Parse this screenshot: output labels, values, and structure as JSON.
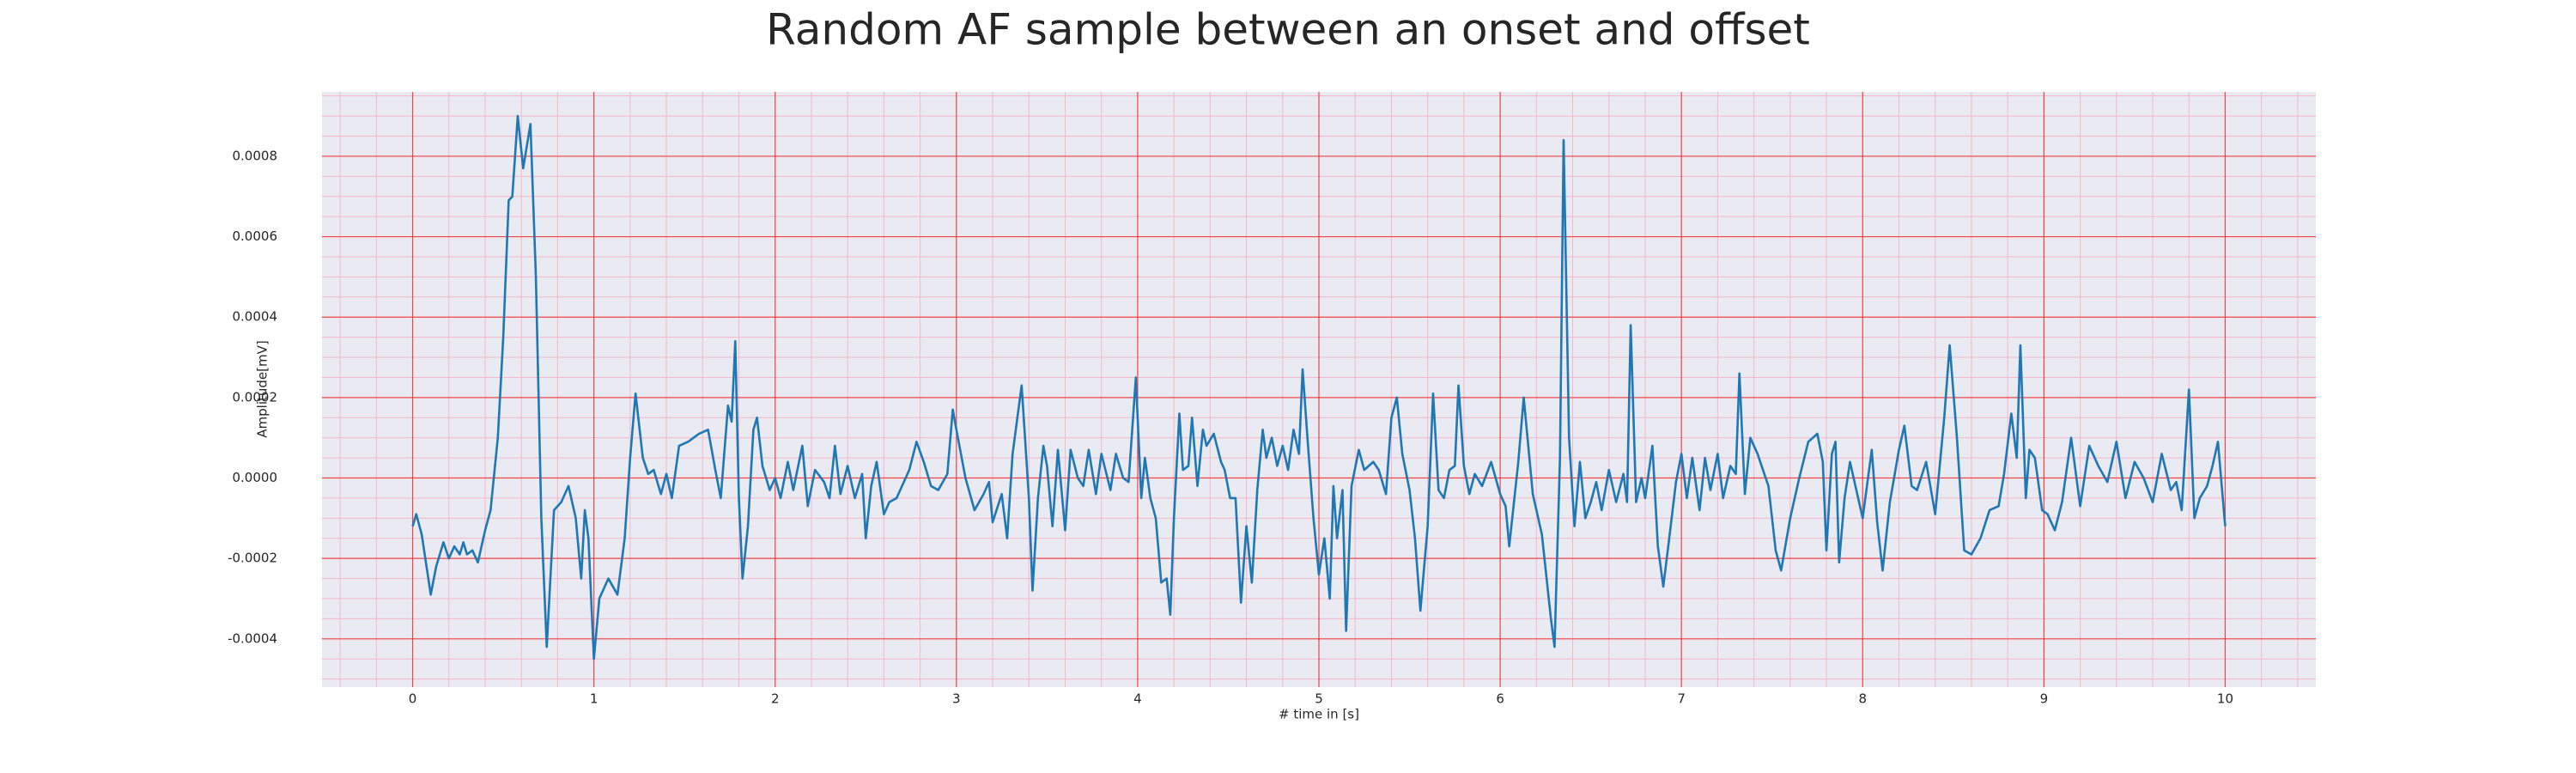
{
  "chart_data": {
    "type": "line",
    "title": "Random AF sample between an onset and offset",
    "xlabel": "# time in [s]",
    "ylabel": "Amplitude[mV]",
    "color": "#1f77b4",
    "grid": true,
    "minor_grid": true,
    "xlim": [
      -0.5,
      10.5
    ],
    "ylim": [
      -0.00052,
      0.00096
    ],
    "xticks": [
      0,
      1,
      2,
      3,
      4,
      5,
      6,
      7,
      8,
      9,
      10
    ],
    "yticks": [
      -0.0004,
      -0.0002,
      {
        "value": 0,
        "label": "0.0000"
      },
      0.0002,
      0.0004,
      0.0006,
      0.0008
    ],
    "x": [
      0,
      0.02,
      0.05,
      0.1,
      0.13,
      0.17,
      0.2,
      0.23,
      0.26,
      0.28,
      0.3,
      0.33,
      0.36,
      0.4,
      0.43,
      0.47,
      0.5,
      0.53,
      0.55,
      0.58,
      0.61,
      0.65,
      0.68,
      0.71,
      0.74,
      0.78,
      0.82,
      0.86,
      0.9,
      0.93,
      0.95,
      0.97,
      1.0,
      1.03,
      1.08,
      1.13,
      1.17,
      1.2,
      1.23,
      1.27,
      1.3,
      1.33,
      1.37,
      1.4,
      1.43,
      1.47,
      1.52,
      1.58,
      1.63,
      1.67,
      1.7,
      1.74,
      1.76,
      1.78,
      1.8,
      1.82,
      1.85,
      1.88,
      1.9,
      1.93,
      1.97,
      2.0,
      2.03,
      2.07,
      2.1,
      2.15,
      2.18,
      2.22,
      2.27,
      2.3,
      2.33,
      2.36,
      2.4,
      2.44,
      2.48,
      2.5,
      2.53,
      2.56,
      2.6,
      2.63,
      2.67,
      2.7,
      2.74,
      2.78,
      2.82,
      2.86,
      2.9,
      2.95,
      2.98,
      3.0,
      3.05,
      3.1,
      3.15,
      3.18,
      3.2,
      3.25,
      3.28,
      3.31,
      3.36,
      3.4,
      3.42,
      3.45,
      3.48,
      3.5,
      3.53,
      3.56,
      3.6,
      3.63,
      3.67,
      3.7,
      3.73,
      3.77,
      3.8,
      3.85,
      3.88,
      3.92,
      3.95,
      3.99,
      4.02,
      4.04,
      4.07,
      4.1,
      4.13,
      4.16,
      4.18,
      4.2,
      4.23,
      4.25,
      4.28,
      4.3,
      4.33,
      4.36,
      4.38,
      4.42,
      4.46,
      4.48,
      4.51,
      4.54,
      4.57,
      4.6,
      4.63,
      4.66,
      4.69,
      4.71,
      4.74,
      4.77,
      4.8,
      4.83,
      4.86,
      4.89,
      4.91,
      4.94,
      4.97,
      5.0,
      5.03,
      5.06,
      5.08,
      5.1,
      5.13,
      5.15,
      5.18,
      5.22,
      5.25,
      5.3,
      5.33,
      5.37,
      5.4,
      5.43,
      5.46,
      5.5,
      5.53,
      5.56,
      5.6,
      5.63,
      5.66,
      5.69,
      5.72,
      5.75,
      5.77,
      5.8,
      5.83,
      5.86,
      5.9,
      5.95,
      6.0,
      6.03,
      6.05,
      6.1,
      6.13,
      6.18,
      6.23,
      6.28,
      6.3,
      6.33,
      6.35,
      6.38,
      6.41,
      6.44,
      6.47,
      6.5,
      6.53,
      6.56,
      6.6,
      6.64,
      6.68,
      6.7,
      6.72,
      6.75,
      6.78,
      6.8,
      6.84,
      6.87,
      6.9,
      6.93,
      6.97,
      7.0,
      7.03,
      7.06,
      7.1,
      7.13,
      7.16,
      7.2,
      7.23,
      7.27,
      7.3,
      7.32,
      7.35,
      7.38,
      7.42,
      7.45,
      7.48,
      7.52,
      7.55,
      7.6,
      7.65,
      7.7,
      7.75,
      7.78,
      7.8,
      7.83,
      7.85,
      7.87,
      7.9,
      7.93,
      7.97,
      8.0,
      8.05,
      8.08,
      8.11,
      8.15,
      8.2,
      8.23,
      8.27,
      8.3,
      8.35,
      8.4,
      8.45,
      8.48,
      8.52,
      8.56,
      8.6,
      8.65,
      8.7,
      8.75,
      8.78,
      8.82,
      8.85,
      8.87,
      8.9,
      8.92,
      8.95,
      8.99,
      9.02,
      9.06,
      9.1,
      9.15,
      9.2,
      9.25,
      9.3,
      9.35,
      9.4,
      9.45,
      9.5,
      9.55,
      9.6,
      9.65,
      9.7,
      9.73,
      9.76,
      9.8,
      9.83,
      9.86,
      9.9,
      9.93,
      9.96,
      10.0
    ],
    "values": [
      -0.00012,
      -9e-05,
      -0.00014,
      -0.00029,
      -0.00022,
      -0.00016,
      -0.0002,
      -0.00017,
      -0.00019,
      -0.00016,
      -0.00019,
      -0.00018,
      -0.00021,
      -0.00013,
      -8e-05,
      0.0001,
      0.00035,
      0.00069,
      0.0007,
      0.0009,
      0.00077,
      0.00088,
      0.0005,
      -0.0001,
      -0.00042,
      -8e-05,
      -6e-05,
      -2e-05,
      -0.0001,
      -0.00025,
      -8e-05,
      -0.00015,
      -0.00045,
      -0.0003,
      -0.00025,
      -0.00029,
      -0.00015,
      5e-05,
      0.00021,
      5e-05,
      1e-05,
      2e-05,
      -4e-05,
      1e-05,
      -5e-05,
      8e-05,
      9e-05,
      0.00011,
      0.00012,
      2e-05,
      -5e-05,
      0.00018,
      0.00014,
      0.00034,
      -5e-05,
      -0.00025,
      -0.00012,
      0.00012,
      0.00015,
      3e-05,
      -3e-05,
      0,
      -5e-05,
      4e-05,
      -3e-05,
      8e-05,
      -7e-05,
      2e-05,
      -1e-05,
      -5e-05,
      8e-05,
      -4e-05,
      3e-05,
      -5e-05,
      1e-05,
      -0.00015,
      -2e-05,
      4e-05,
      -9e-05,
      -6e-05,
      -5e-05,
      -2e-05,
      2e-05,
      9e-05,
      4e-05,
      -2e-05,
      -3e-05,
      1e-05,
      0.00017,
      0.00012,
      0,
      -8e-05,
      -4e-05,
      -1e-05,
      -0.00011,
      -4e-05,
      -0.00015,
      6e-05,
      0.00023,
      -5e-05,
      -0.00028,
      -5e-05,
      8e-05,
      3e-05,
      -0.00012,
      7e-05,
      -0.00013,
      7e-05,
      0,
      -2e-05,
      7e-05,
      -4e-05,
      6e-05,
      -3e-05,
      6e-05,
      0,
      -1e-05,
      0.00025,
      -5e-05,
      5e-05,
      -5e-05,
      -0.0001,
      -0.00026,
      -0.00025,
      -0.00034,
      -0.0001,
      0.00016,
      2e-05,
      3e-05,
      0.00015,
      -2e-05,
      0.00012,
      8e-05,
      0.00011,
      4e-05,
      2e-05,
      -5e-05,
      -5e-05,
      -0.00031,
      -0.00012,
      -0.00026,
      -3e-05,
      0.00012,
      5e-05,
      0.0001,
      3e-05,
      8e-05,
      2e-05,
      0.00012,
      6e-05,
      0.00027,
      8e-05,
      -0.0001,
      -0.00024,
      -0.00015,
      -0.0003,
      -2e-05,
      -0.00015,
      -3e-05,
      -0.00038,
      -2e-05,
      7e-05,
      2e-05,
      4e-05,
      2e-05,
      -4e-05,
      0.00015,
      0.0002,
      6e-05,
      -3e-05,
      -0.00015,
      -0.00033,
      -0.00012,
      0.00021,
      -3e-05,
      -5e-05,
      2e-05,
      3e-05,
      0.00023,
      3e-05,
      -4e-05,
      1e-05,
      -2e-05,
      4e-05,
      -4e-05,
      -7e-05,
      -0.00017,
      4e-05,
      0.0002,
      -4e-05,
      -0.00014,
      -0.00035,
      -0.00042,
      5e-05,
      0.00084,
      0.0001,
      -0.00012,
      4e-05,
      -0.0001,
      -6e-05,
      -1e-05,
      -8e-05,
      2e-05,
      -6e-05,
      1e-05,
      -6e-05,
      0.00038,
      -6e-05,
      0,
      -5e-05,
      8e-05,
      -0.00017,
      -0.00027,
      -0.00016,
      -1e-05,
      6e-05,
      -5e-05,
      5e-05,
      -8e-05,
      5e-05,
      -3e-05,
      6e-05,
      -5e-05,
      3e-05,
      1e-05,
      0.00026,
      -4e-05,
      0.0001,
      6e-05,
      2e-05,
      -2e-05,
      -0.00018,
      -0.00023,
      -0.0001,
      0,
      9e-05,
      0.00011,
      4e-05,
      -0.00018,
      6e-05,
      9e-05,
      -0.00021,
      -5e-05,
      4e-05,
      -4e-05,
      -0.0001,
      7e-05,
      -0.00011,
      -0.00023,
      -6e-05,
      7e-05,
      0.00013,
      -2e-05,
      -3e-05,
      4e-05,
      -9e-05,
      0.00015,
      0.00033,
      0.0001,
      -0.00018,
      -0.00019,
      -0.00015,
      -8e-05,
      -7e-05,
      1e-05,
      0.00016,
      5e-05,
      0.00033,
      -5e-05,
      7e-05,
      5e-05,
      -8e-05,
      -9e-05,
      -0.00013,
      -6e-05,
      0.0001,
      -7e-05,
      8e-05,
      3e-05,
      -1e-05,
      9e-05,
      -5e-05,
      4e-05,
      0,
      -6e-05,
      6e-05,
      -3e-05,
      -1e-05,
      -8e-05,
      0.00022,
      -0.0001,
      -5e-05,
      -2e-05,
      3e-05,
      9e-05,
      -0.00012
    ]
  }
}
